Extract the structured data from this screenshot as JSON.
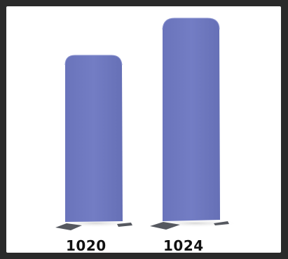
{
  "products": [
    {
      "model": "1020",
      "color": "#6f79c0"
    },
    {
      "model": "1024",
      "color": "#6f79c0"
    }
  ],
  "colors": {
    "border": "#2a2a2a",
    "background": "#ffffff",
    "panel": "#6f79c0",
    "panel_shade": "#5f68ad",
    "feet": "#555860",
    "label": "#111111"
  }
}
